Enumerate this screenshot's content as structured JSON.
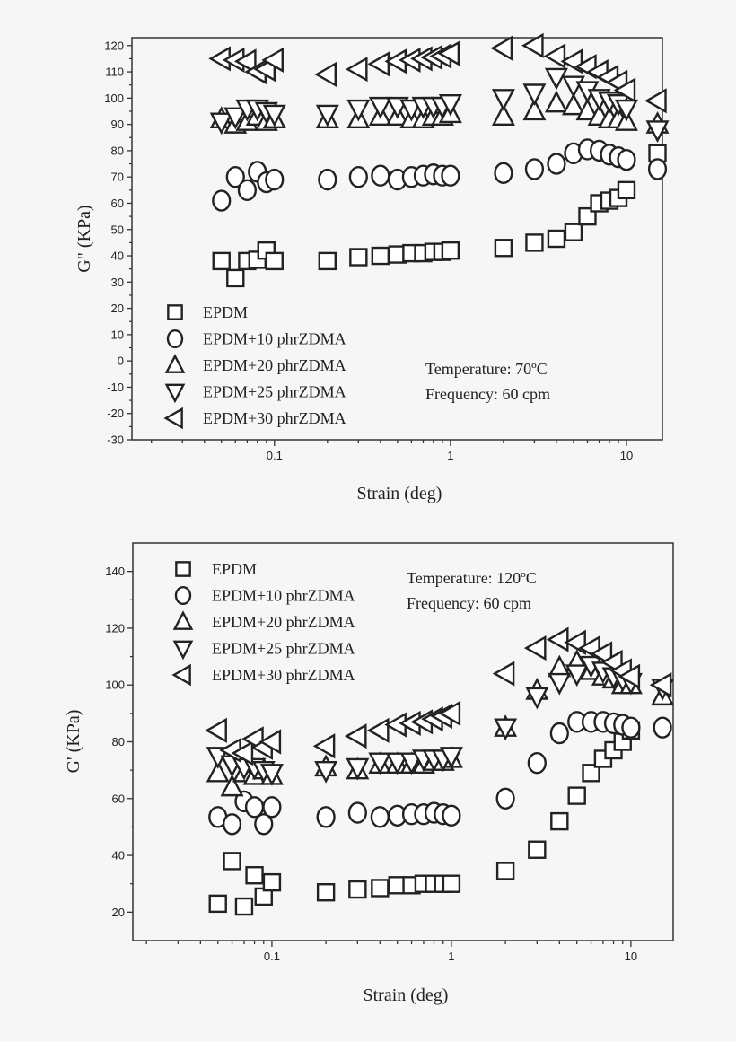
{
  "chart_data": [
    {
      "type": "scatter",
      "xlabel": "Strain (deg)",
      "ylabel": "G\" (KPa)",
      "xscale": "log",
      "xlim": [
        0.0155,
        16
      ],
      "ylim": [
        -30,
        123
      ],
      "yticks": [
        -30,
        -20,
        -10,
        0,
        10,
        20,
        30,
        40,
        50,
        60,
        70,
        80,
        90,
        100,
        110,
        120
      ],
      "xticks": [
        0.1,
        1,
        10
      ],
      "xtick_labels": [
        "0.1",
        "1",
        "10"
      ],
      "legend_placement": "bottom-left",
      "annotations": [
        "Temperature: 70ºC",
        "Frequency: 60 cpm"
      ],
      "x": [
        0.05,
        0.06,
        0.07,
        0.08,
        0.09,
        0.1,
        0.2,
        0.3,
        0.4,
        0.5,
        0.6,
        0.7,
        0.8,
        0.9,
        1,
        2,
        3,
        4,
        5,
        6,
        7,
        8,
        9,
        10,
        15
      ],
      "series": [
        {
          "name": "EPDM",
          "marker": "square",
          "values": [
            38,
            31.5,
            38,
            38.5,
            42,
            38,
            38,
            39.5,
            40,
            40.5,
            41,
            41,
            41.5,
            41.5,
            42,
            43,
            45,
            46.5,
            49,
            55,
            60,
            61,
            62,
            65,
            79
          ]
        },
        {
          "name": "EPDM+10 phrZDMA",
          "marker": "circle",
          "values": [
            61,
            70,
            65,
            72,
            68,
            69,
            69,
            70,
            70.5,
            69,
            70,
            70.5,
            71,
            70.5,
            70.5,
            71.5,
            73,
            75,
            79,
            80.5,
            80,
            78.5,
            77.5,
            76.5,
            73
          ]
        },
        {
          "name": "EPDM+20 phrZDMA",
          "marker": "triangle-up",
          "values": [
            92,
            90,
            91,
            93,
            91,
            92,
            92,
            92,
            93,
            93,
            92,
            92,
            93,
            93,
            94,
            93,
            95,
            98,
            97,
            95,
            93,
            92,
            92,
            91,
            90
          ]
        },
        {
          "name": "EPDM+25 phrZDMA",
          "marker": "triangle-down",
          "values": [
            91,
            93,
            96,
            96,
            95,
            94,
            94,
            96,
            97,
            97,
            96,
            97,
            97,
            97,
            98,
            100,
            102,
            108,
            105,
            103,
            100,
            99,
            98,
            96,
            88
          ]
        },
        {
          "name": "EPDM+30 phrZDMA",
          "marker": "triangle-left",
          "values": [
            115,
            114.5,
            114,
            110,
            111,
            114.5,
            109,
            111,
            113,
            114,
            114.5,
            115,
            115.5,
            116,
            117,
            119,
            120,
            116,
            114,
            112,
            110,
            108,
            106,
            103,
            99
          ]
        }
      ]
    },
    {
      "type": "scatter",
      "xlabel": "Strain (deg)",
      "ylabel": "G' (KPa)",
      "xscale": "log",
      "xlim": [
        0.0168,
        17.2
      ],
      "ylim": [
        10,
        150
      ],
      "yticks": [
        20,
        40,
        60,
        80,
        100,
        120,
        140
      ],
      "xticks": [
        0.1,
        1,
        10
      ],
      "xtick_labels": [
        "0.1",
        "1",
        "10"
      ],
      "legend_placement": "top-left",
      "annotations": [
        "Temperature: 120ºC",
        "Frequency: 60 cpm"
      ],
      "x": [
        0.05,
        0.06,
        0.07,
        0.08,
        0.09,
        0.1,
        0.2,
        0.3,
        0.4,
        0.5,
        0.6,
        0.7,
        0.8,
        0.9,
        1,
        2,
        3,
        4,
        5,
        6,
        7,
        8,
        9,
        10,
        15
      ],
      "series": [
        {
          "name": "EPDM",
          "marker": "square",
          "values": [
            23,
            38,
            22,
            33,
            25.5,
            30.5,
            27,
            28,
            28.5,
            29.5,
            29.5,
            30,
            30,
            30,
            30,
            34.5,
            42,
            52,
            61,
            69,
            74,
            77,
            80,
            84,
            null
          ]
        },
        {
          "name": "EPDM+10 phrZDMA",
          "marker": "circle",
          "values": [
            53.5,
            51,
            59,
            57,
            51,
            57,
            53.5,
            55,
            53.5,
            54,
            54.5,
            54.5,
            55,
            54.5,
            54,
            60,
            72.5,
            83,
            87,
            87,
            87,
            86.5,
            86,
            85,
            85
          ]
        },
        {
          "name": "EPDM+20 phrZDMA",
          "marker": "triangle-up",
          "values": [
            69,
            64,
            69,
            68,
            70,
            68,
            71,
            70,
            72,
            72,
            72,
            72,
            73,
            73,
            74,
            85,
            98,
            106,
            108,
            105,
            103,
            102,
            100,
            100,
            96
          ]
        },
        {
          "name": "EPDM+25 phrZDMA",
          "marker": "triangle-down",
          "values": [
            75,
            72,
            71,
            71,
            70,
            69,
            70,
            71,
            73,
            73,
            73,
            74,
            74,
            74,
            75,
            85,
            96,
            101,
            104,
            107,
            105,
            103,
            102,
            101,
            99
          ]
        },
        {
          "name": "EPDM+30 phrZDMA",
          "marker": "triangle-left",
          "values": [
            84,
            77,
            76,
            81,
            78,
            80,
            78.5,
            82,
            84,
            86,
            86.5,
            87,
            88,
            89,
            90,
            104,
            113,
            116,
            115,
            113,
            111,
            108,
            105,
            103,
            100
          ]
        }
      ]
    }
  ],
  "colors": {
    "marker_stroke": "#222222",
    "marker_fill": "#ffffff",
    "background": "#f6f6f6"
  }
}
